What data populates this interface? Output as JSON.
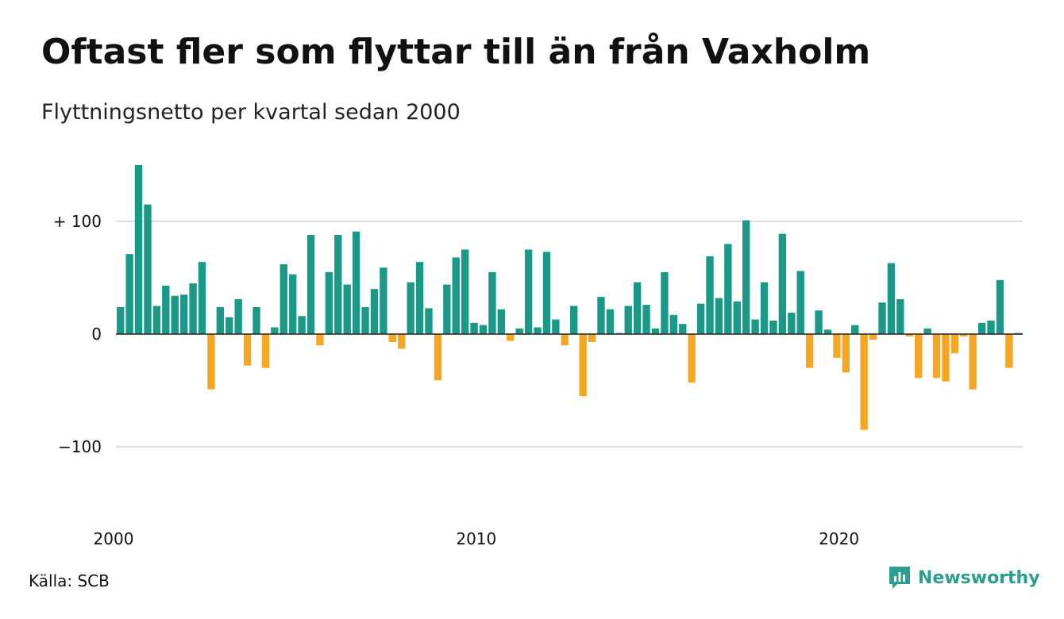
{
  "title": "Oftast fler som flyttar till än från Vaxholm",
  "subtitle": "Flyttningsnetto per kvartal sedan 2000",
  "source": "Källa: SCB",
  "brand": {
    "name": "Newsworthy",
    "icon": "newsworthy-logo-icon"
  },
  "colors": {
    "positive": "#1a9988",
    "negative": "#f5a623",
    "grid": "#dddddd",
    "text": "#111111",
    "brand": "#2c9e8e"
  },
  "chart_data": {
    "type": "bar",
    "title": "Oftast fler som flyttar till än från Vaxholm",
    "subtitle": "Flyttningsnetto per kvartal sedan 2000",
    "xlabel": "",
    "ylabel": "",
    "x_start_year": 2000,
    "periods_per_year": 4,
    "x_ticks": [
      2000,
      2010,
      2020
    ],
    "x_tick_labels": [
      "2000",
      "2010",
      "2020"
    ],
    "y_ticks": [
      100,
      0,
      -100
    ],
    "y_tick_labels": [
      "+ 100",
      "0",
      "−100"
    ],
    "ylim": [
      -150,
      150
    ],
    "grid": true,
    "legend": "none",
    "values": [
      24,
      71,
      150,
      115,
      25,
      43,
      34,
      35,
      45,
      64,
      -49,
      24,
      15,
      31,
      -28,
      24,
      -30,
      6,
      62,
      53,
      16,
      88,
      -10,
      55,
      88,
      44,
      91,
      24,
      40,
      59,
      -7,
      -13,
      46,
      64,
      23,
      -41,
      44,
      68,
      75,
      10,
      8,
      55,
      22,
      -6,
      5,
      75,
      6,
      73,
      13,
      -10,
      25,
      -55,
      -7,
      33,
      22,
      1,
      25,
      46,
      26,
      5,
      55,
      17,
      9,
      -43,
      27,
      69,
      32,
      80,
      29,
      101,
      13,
      46,
      12,
      89,
      19,
      56,
      -30,
      21,
      4,
      -21,
      -34,
      8,
      -85,
      -5,
      28,
      63,
      31,
      -2,
      -39,
      5,
      -39,
      -42,
      -17,
      -2,
      -49,
      10,
      12,
      48,
      -30,
      1
    ]
  }
}
